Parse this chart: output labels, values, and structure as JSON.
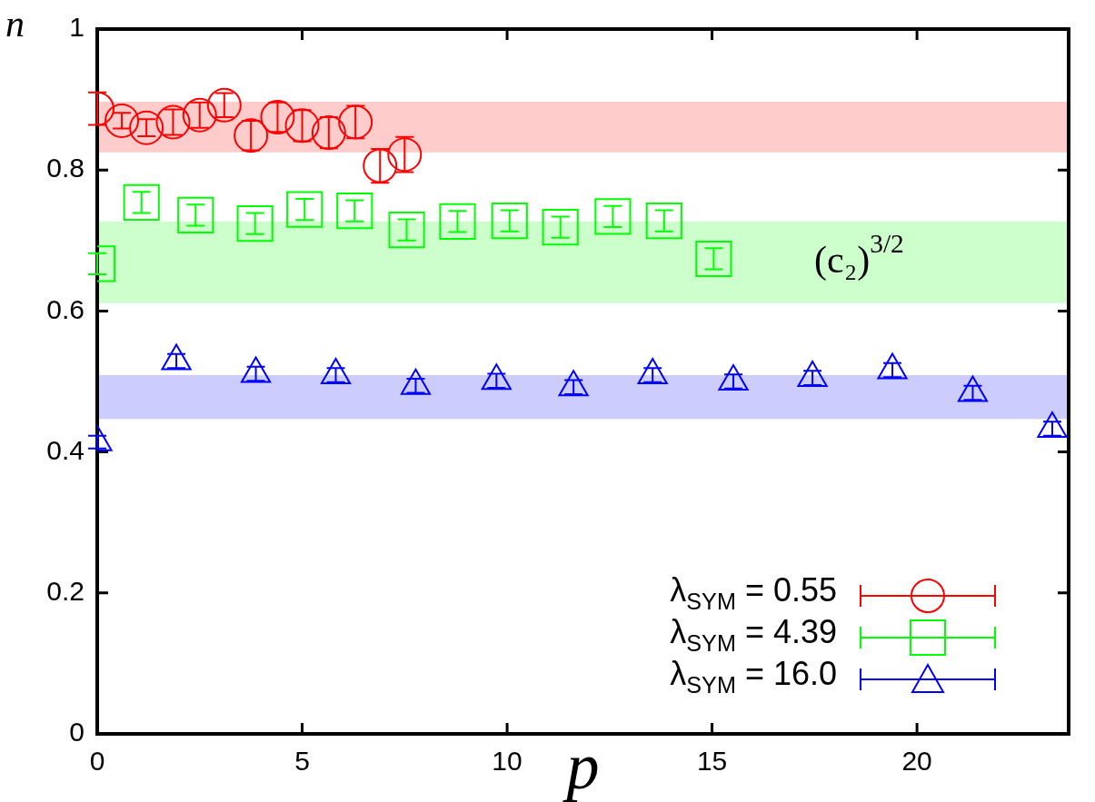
{
  "chart_data": {
    "type": "scatter",
    "xlabel": "p",
    "ylabel": "n",
    "xlim": [
      0,
      23.7
    ],
    "xticks": [
      0,
      5,
      10,
      15,
      20
    ],
    "ylim": [
      0,
      1
    ],
    "yticks": [
      0,
      0.2,
      0.4,
      0.6,
      0.8,
      1
    ],
    "legend": "bottom right",
    "bands": [
      {
        "axis": "y",
        "from": 0.825,
        "to": 0.897,
        "color": "#ffcccc"
      },
      {
        "axis": "y",
        "from": 0.611,
        "to": 0.727,
        "color": "#ccffcc",
        "label": "(c₂)$^{3/2}$"
      },
      {
        "axis": "y",
        "from": 0.447,
        "to": 0.509,
        "color": "#ccccff"
      }
    ],
    "series": [
      {
        "name": "λ$_{SYM}$ = 0.55",
        "color": "#ff0000",
        "marker": "circle",
        "x": [
          0,
          0.6,
          1.2,
          1.85,
          2.5,
          3.1,
          3.75,
          4.4,
          5.0,
          5.65,
          6.3,
          6.9,
          7.5
        ],
        "values": [
          0.887,
          0.87,
          0.86,
          0.868,
          0.878,
          0.892,
          0.849,
          0.875,
          0.863,
          0.853,
          0.868,
          0.806,
          0.822
        ],
        "errors": [
          0.023,
          0.011,
          0.012,
          0.018,
          0.018,
          0.017,
          0.021,
          0.021,
          0.022,
          0.022,
          0.023,
          0.024,
          0.025
        ]
      },
      {
        "name": "λ$_{SYM}$ = 4.39",
        "color": "#00ff00",
        "marker": "square",
        "x": [
          0,
          1.08,
          2.4,
          3.85,
          5.06,
          6.28,
          7.55,
          8.79,
          10.06,
          11.3,
          12.58,
          13.83,
          15.04
        ],
        "values": [
          0.667,
          0.754,
          0.736,
          0.724,
          0.744,
          0.742,
          0.715,
          0.727,
          0.728,
          0.719,
          0.734,
          0.728,
          0.674
        ],
        "errors": [
          0.015,
          0.015,
          0.015,
          0.015,
          0.015,
          0.015,
          0.015,
          0.015,
          0.015,
          0.015,
          0.015,
          0.015,
          0.015
        ]
      },
      {
        "name": "λ$_{SYM}$ = 16.0",
        "color": "#0000ff",
        "marker": "triangle",
        "x": [
          0,
          1.93,
          3.87,
          5.82,
          7.77,
          9.74,
          11.62,
          13.55,
          15.52,
          17.45,
          19.4,
          21.36,
          23.3
        ],
        "values": [
          0.414,
          0.529,
          0.511,
          0.509,
          0.494,
          0.501,
          0.492,
          0.509,
          0.5,
          0.505,
          0.516,
          0.484,
          0.433
        ],
        "errors": [
          0.009,
          0.01,
          0.01,
          0.01,
          0.01,
          0.01,
          0.01,
          0.01,
          0.01,
          0.01,
          0.01,
          0.01,
          0.01
        ]
      }
    ]
  }
}
